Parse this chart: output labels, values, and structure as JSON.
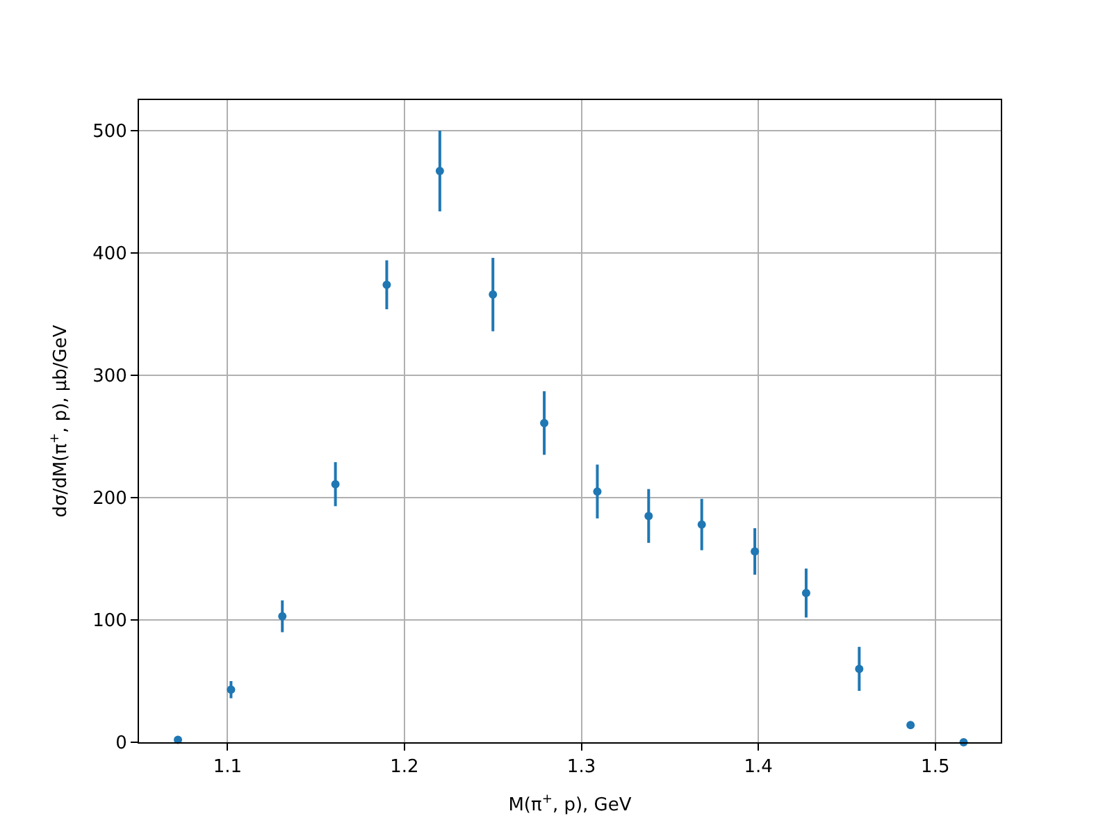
{
  "chart_data": {
    "type": "scatter",
    "xlabel": "M(π$^{+}$, p), GeV",
    "ylabel": "dσ/dM(π$^{+}$, p), μb/GeV",
    "x": [
      1.072,
      1.102,
      1.131,
      1.161,
      1.19,
      1.22,
      1.25,
      1.279,
      1.309,
      1.338,
      1.368,
      1.398,
      1.427,
      1.457,
      1.486,
      1.516
    ],
    "series": [
      {
        "color": "#1f77b4",
        "values": [
          2,
          43,
          103,
          211,
          374,
          467,
          366,
          261,
          205,
          185,
          178,
          156,
          122,
          60,
          14,
          0
        ],
        "errors": [
          1,
          7,
          13,
          18,
          20,
          33,
          30,
          26,
          22,
          22,
          21,
          19,
          20,
          18,
          3,
          1
        ]
      }
    ],
    "xlim": [
      1.05,
      1.537
    ],
    "xticks": [
      1.1,
      1.2,
      1.3,
      1.4,
      1.5
    ],
    "ylim": [
      0,
      525
    ],
    "yticks": [
      0,
      100,
      200,
      300,
      400,
      500
    ],
    "grid": true,
    "marker": "circle",
    "legend": false
  }
}
